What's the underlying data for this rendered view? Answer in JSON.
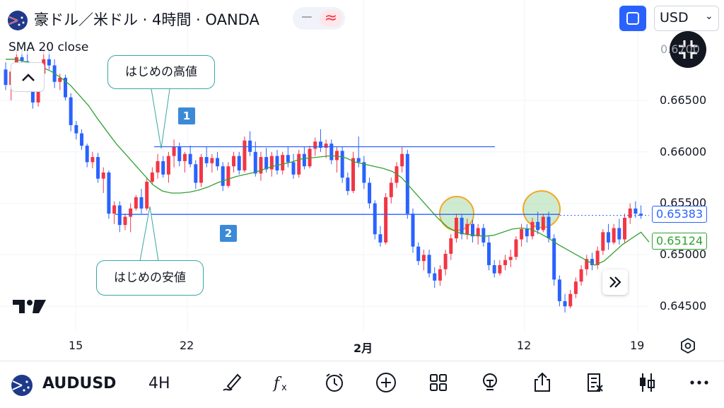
{
  "header": {
    "title": "豪ドル／米ドル · 4時間 · OANDA",
    "currency": "USD"
  },
  "indicator": {
    "label": "SMA 20 close"
  },
  "annotations": {
    "high_label": "はじめの高値",
    "low_label": "はじめの安値",
    "box1": "1",
    "box2": "2"
  },
  "price_axis": {
    "ticks": [
      "0.66500",
      "0.66000",
      "0.65500",
      "0.65000",
      "0.64500"
    ],
    "last_price": "0.65383",
    "sma_value": "0.65124"
  },
  "time_axis": {
    "ticks": [
      "15",
      "22",
      "2月",
      "12",
      "19"
    ]
  },
  "toolbar": {
    "symbol": "AUDUSD",
    "interval": "4H"
  },
  "colors": {
    "up": "#f23645",
    "down": "#2962ff",
    "sma": "#33a133",
    "level": "#2962ff",
    "highlight_fill": "#a8dba8",
    "highlight_stroke": "#f5a623"
  },
  "chart_data": {
    "type": "candlestick",
    "symbol": "AUDUSD",
    "interval": "4H",
    "ylim": [
      0.6435,
      0.67
    ],
    "ohlc": [
      [
        0.668,
        0.6687,
        0.666,
        0.6665
      ],
      [
        0.6665,
        0.6684,
        0.665,
        0.6678
      ],
      [
        0.6678,
        0.67,
        0.6669,
        0.6692
      ],
      [
        0.6692,
        0.67,
        0.6684,
        0.6688
      ],
      [
        0.6688,
        0.6698,
        0.6658,
        0.6666
      ],
      [
        0.6666,
        0.6674,
        0.6642,
        0.6648
      ],
      [
        0.6648,
        0.6679,
        0.6644,
        0.6676
      ],
      [
        0.6676,
        0.6699,
        0.6672,
        0.669
      ],
      [
        0.669,
        0.6698,
        0.668,
        0.6684
      ],
      [
        0.6684,
        0.669,
        0.6662,
        0.6668
      ],
      [
        0.6668,
        0.6676,
        0.666,
        0.6672
      ],
      [
        0.6672,
        0.6675,
        0.665,
        0.6653
      ],
      [
        0.6653,
        0.6657,
        0.662,
        0.6626
      ],
      [
        0.6626,
        0.663,
        0.6612,
        0.6618
      ],
      [
        0.6618,
        0.6622,
        0.6602,
        0.6606
      ],
      [
        0.6606,
        0.6608,
        0.6585,
        0.659
      ],
      [
        0.659,
        0.66,
        0.6584,
        0.6595
      ],
      [
        0.6595,
        0.6599,
        0.657,
        0.6574
      ],
      [
        0.6574,
        0.6585,
        0.656,
        0.658
      ],
      [
        0.658,
        0.6582,
        0.6535,
        0.654
      ],
      [
        0.654,
        0.6552,
        0.653,
        0.6548
      ],
      [
        0.6548,
        0.6552,
        0.6522,
        0.6529
      ],
      [
        0.6529,
        0.654,
        0.6524,
        0.6537
      ],
      [
        0.6537,
        0.655,
        0.6522,
        0.6545
      ],
      [
        0.6545,
        0.6558,
        0.6543,
        0.6556
      ],
      [
        0.6556,
        0.6564,
        0.654,
        0.6545
      ],
      [
        0.6545,
        0.6575,
        0.6543,
        0.6571
      ],
      [
        0.6571,
        0.6585,
        0.6568,
        0.658
      ],
      [
        0.658,
        0.6598,
        0.6574,
        0.6591
      ],
      [
        0.6591,
        0.6596,
        0.6575,
        0.6578
      ],
      [
        0.6578,
        0.66,
        0.657,
        0.6596
      ],
      [
        0.6596,
        0.6612,
        0.6585,
        0.6605
      ],
      [
        0.6605,
        0.6609,
        0.6586,
        0.6591
      ],
      [
        0.6591,
        0.66,
        0.658,
        0.6598
      ],
      [
        0.6598,
        0.6606,
        0.6585,
        0.6588
      ],
      [
        0.6588,
        0.6592,
        0.6564,
        0.657
      ],
      [
        0.657,
        0.6598,
        0.6566,
        0.6595
      ],
      [
        0.6595,
        0.6605,
        0.6585,
        0.6589
      ],
      [
        0.6589,
        0.6598,
        0.658,
        0.6594
      ],
      [
        0.6594,
        0.66,
        0.6582,
        0.6586
      ],
      [
        0.6586,
        0.659,
        0.6562,
        0.6567
      ],
      [
        0.6567,
        0.659,
        0.6565,
        0.6586
      ],
      [
        0.6586,
        0.66,
        0.658,
        0.6596
      ],
      [
        0.6596,
        0.66,
        0.6578,
        0.6582
      ],
      [
        0.6582,
        0.6615,
        0.658,
        0.6611
      ],
      [
        0.6611,
        0.662,
        0.6596,
        0.66
      ],
      [
        0.66,
        0.661,
        0.6576,
        0.6579
      ],
      [
        0.6579,
        0.66,
        0.6572,
        0.6595
      ],
      [
        0.6595,
        0.6604,
        0.658,
        0.6583
      ],
      [
        0.6583,
        0.66,
        0.6576,
        0.6596
      ],
      [
        0.6596,
        0.6602,
        0.6578,
        0.6582
      ],
      [
        0.6582,
        0.66,
        0.6578,
        0.6597
      ],
      [
        0.6597,
        0.6605,
        0.6585,
        0.659
      ],
      [
        0.659,
        0.6598,
        0.6574,
        0.6578
      ],
      [
        0.6578,
        0.6602,
        0.6575,
        0.6598
      ],
      [
        0.6598,
        0.6605,
        0.6583,
        0.6586
      ],
      [
        0.6586,
        0.6606,
        0.6584,
        0.6603
      ],
      [
        0.6603,
        0.6614,
        0.6596,
        0.661
      ],
      [
        0.661,
        0.6622,
        0.66,
        0.6604
      ],
      [
        0.6604,
        0.6612,
        0.6594,
        0.6608
      ],
      [
        0.6608,
        0.6612,
        0.6588,
        0.6592
      ],
      [
        0.6592,
        0.6605,
        0.658,
        0.6601
      ],
      [
        0.6601,
        0.6605,
        0.657,
        0.6575
      ],
      [
        0.6575,
        0.658,
        0.6558,
        0.6562
      ],
      [
        0.6562,
        0.66,
        0.656,
        0.6594
      ],
      [
        0.6594,
        0.6615,
        0.6585,
        0.659
      ],
      [
        0.659,
        0.6596,
        0.6564,
        0.657
      ],
      [
        0.657,
        0.6575,
        0.6545,
        0.655
      ],
      [
        0.655,
        0.6553,
        0.6515,
        0.652
      ],
      [
        0.652,
        0.6528,
        0.6508,
        0.6512
      ],
      [
        0.6512,
        0.656,
        0.651,
        0.6556
      ],
      [
        0.6556,
        0.6575,
        0.655,
        0.657
      ],
      [
        0.657,
        0.659,
        0.6565,
        0.6586
      ],
      [
        0.6586,
        0.6605,
        0.658,
        0.6598
      ],
      [
        0.6598,
        0.6602,
        0.6535,
        0.654
      ],
      [
        0.654,
        0.6545,
        0.6502,
        0.6508
      ],
      [
        0.6508,
        0.6512,
        0.649,
        0.6494
      ],
      [
        0.6494,
        0.6505,
        0.6485,
        0.65
      ],
      [
        0.65,
        0.6505,
        0.6478,
        0.6482
      ],
      [
        0.6482,
        0.6488,
        0.6468,
        0.6475
      ],
      [
        0.6475,
        0.649,
        0.647,
        0.6486
      ],
      [
        0.6486,
        0.6505,
        0.648,
        0.6501
      ],
      [
        0.6501,
        0.652,
        0.6495,
        0.6516
      ],
      [
        0.6516,
        0.654,
        0.6512,
        0.6536
      ],
      [
        0.6536,
        0.654,
        0.6515,
        0.652
      ],
      [
        0.652,
        0.6535,
        0.6515,
        0.653
      ],
      [
        0.653,
        0.6534,
        0.6512,
        0.6518
      ],
      [
        0.6518,
        0.653,
        0.651,
        0.6526
      ],
      [
        0.6526,
        0.653,
        0.6508,
        0.6512
      ],
      [
        0.6512,
        0.6518,
        0.6485,
        0.649
      ],
      [
        0.649,
        0.6495,
        0.6478,
        0.6482
      ],
      [
        0.6482,
        0.6495,
        0.648,
        0.649
      ],
      [
        0.649,
        0.65,
        0.6485,
        0.6495
      ],
      [
        0.6495,
        0.6505,
        0.6488,
        0.6498
      ],
      [
        0.6498,
        0.6518,
        0.6495,
        0.6515
      ],
      [
        0.6515,
        0.653,
        0.6508,
        0.6525
      ],
      [
        0.6525,
        0.653,
        0.6512,
        0.6518
      ],
      [
        0.6518,
        0.6536,
        0.6515,
        0.6532
      ],
      [
        0.6532,
        0.6542,
        0.652,
        0.6524
      ],
      [
        0.6524,
        0.654,
        0.6522,
        0.6537
      ],
      [
        0.6537,
        0.6542,
        0.6512,
        0.6516
      ],
      [
        0.6516,
        0.652,
        0.647,
        0.6476
      ],
      [
        0.6476,
        0.648,
        0.645,
        0.6455
      ],
      [
        0.6455,
        0.6462,
        0.6444,
        0.645
      ],
      [
        0.645,
        0.6466,
        0.6448,
        0.6462
      ],
      [
        0.6462,
        0.6478,
        0.6458,
        0.6474
      ],
      [
        0.6474,
        0.649,
        0.647,
        0.6486
      ],
      [
        0.6486,
        0.65,
        0.648,
        0.6496
      ],
      [
        0.6496,
        0.6502,
        0.6485,
        0.649
      ],
      [
        0.649,
        0.6508,
        0.6486,
        0.6504
      ],
      [
        0.6504,
        0.6525,
        0.65,
        0.6522
      ],
      [
        0.6522,
        0.653,
        0.6505,
        0.6512
      ],
      [
        0.6512,
        0.653,
        0.651,
        0.6526
      ],
      [
        0.6526,
        0.6535,
        0.651,
        0.6515
      ],
      [
        0.6515,
        0.654,
        0.6512,
        0.6536
      ],
      [
        0.6536,
        0.655,
        0.653,
        0.6545
      ],
      [
        0.6545,
        0.6552,
        0.6536,
        0.654
      ],
      [
        0.654,
        0.6548,
        0.6535,
        0.6538
      ]
    ],
    "sma20": [
      0.669,
      0.669,
      0.6688,
      0.6686,
      0.6682,
      0.6678,
      0.6672,
      0.6665,
      0.6655,
      0.6645,
      0.6632,
      0.662,
      0.6608,
      0.6598,
      0.6588,
      0.6578,
      0.6568,
      0.6562,
      0.656,
      0.656,
      0.6561,
      0.6563,
      0.6566,
      0.657,
      0.6573,
      0.6576,
      0.6578,
      0.658,
      0.6583,
      0.6586,
      0.6588,
      0.659,
      0.6593,
      0.6594,
      0.6595,
      0.6596,
      0.6596,
      0.6594,
      0.659,
      0.6588,
      0.6586,
      0.6584,
      0.6581,
      0.6575,
      0.6565,
      0.6555,
      0.6545,
      0.6535,
      0.6527,
      0.6522,
      0.652,
      0.6519,
      0.6518,
      0.6519,
      0.6522,
      0.6525,
      0.6526,
      0.6525,
      0.6521,
      0.6516,
      0.651,
      0.6505,
      0.65,
      0.6495,
      0.649,
      0.6494,
      0.6502,
      0.651,
      0.6516,
      0.6522
    ],
    "levels": {
      "initial_high": 0.6605,
      "initial_low": 0.65393
    },
    "price_ticks": [
      0.665,
      0.66,
      0.655,
      0.65,
      0.645
    ],
    "last_price": 0.65383,
    "sma_last": 0.65124
  }
}
